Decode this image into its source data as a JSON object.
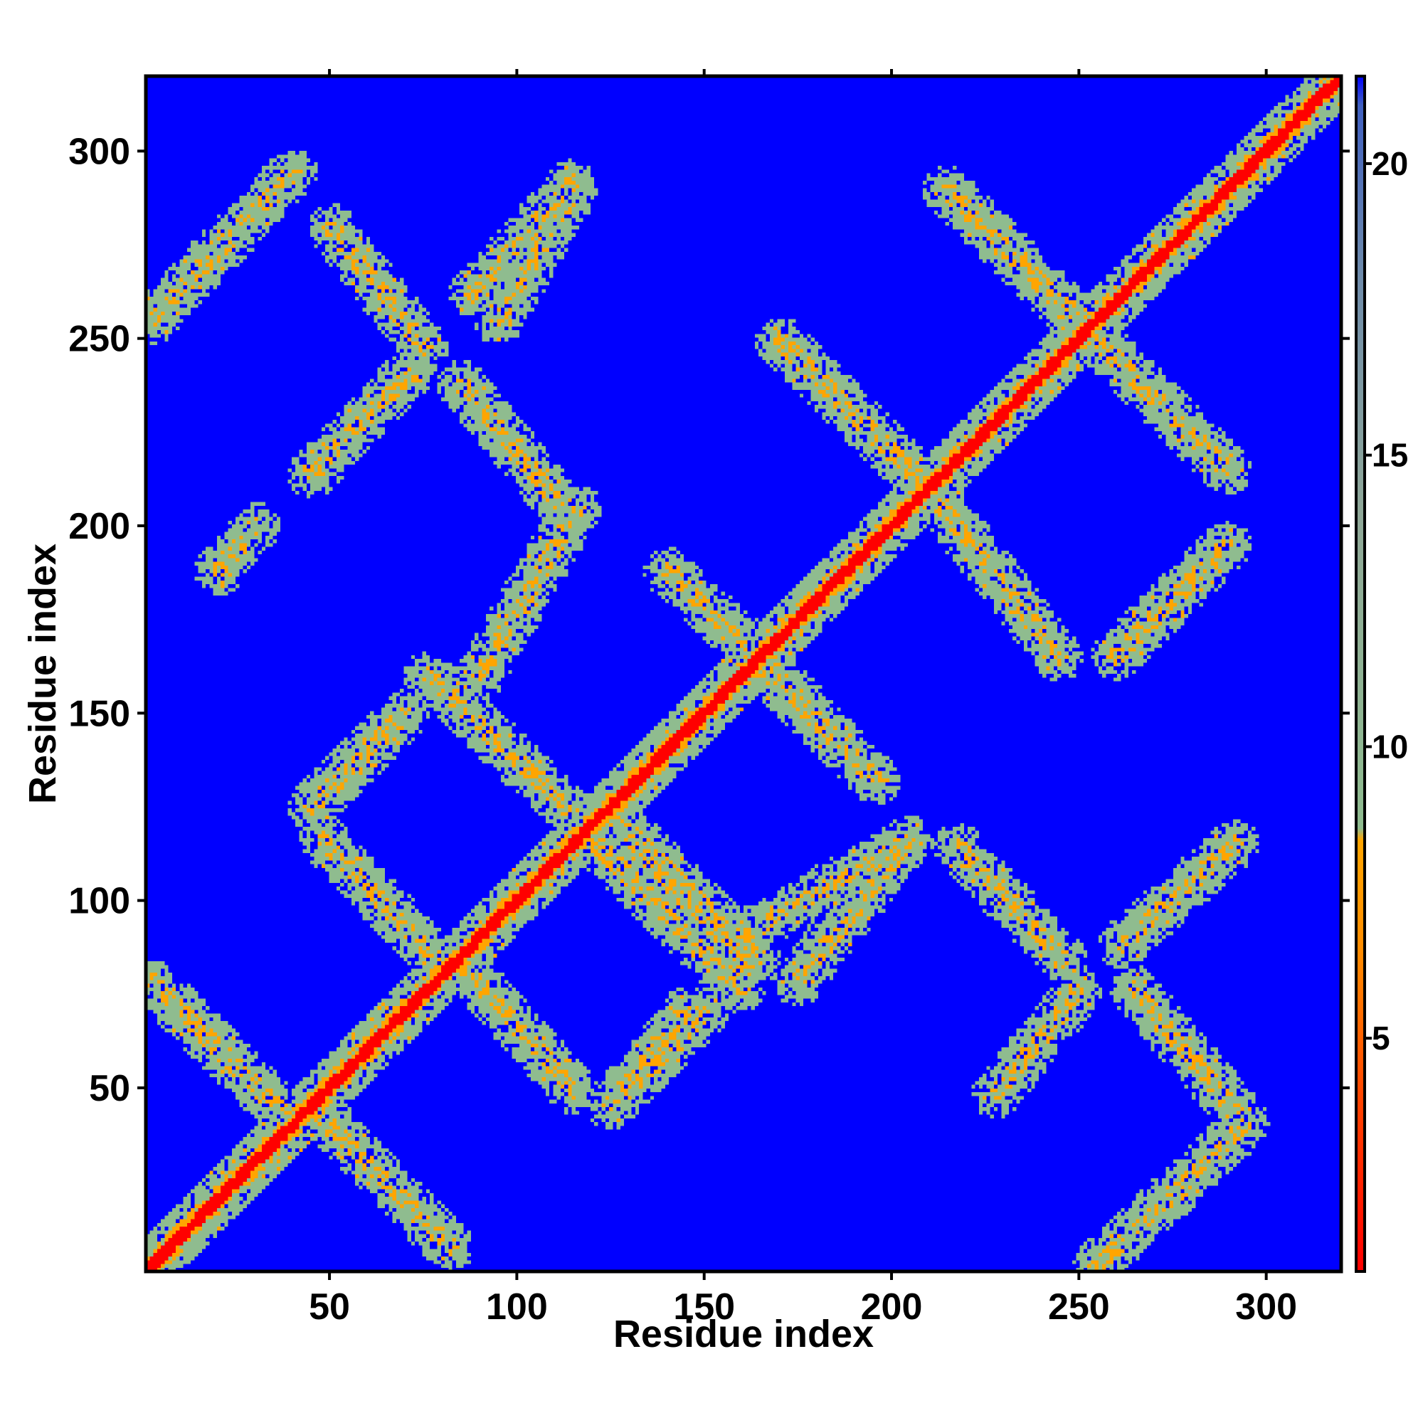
{
  "chart_data": {
    "type": "heatmap",
    "title": "",
    "xlabel": "Residue index",
    "ylabel": "Residue index",
    "xlim": [
      1,
      320
    ],
    "ylim": [
      1,
      320
    ],
    "x_ticks": [
      50,
      100,
      150,
      200,
      250,
      300
    ],
    "y_ticks": [
      50,
      100,
      150,
      200,
      250,
      300
    ],
    "grid": false,
    "colorbar": {
      "ticks": [
        5,
        10,
        15,
        20
      ],
      "range": [
        1,
        21.5
      ],
      "stops": [
        {
          "value": 1,
          "color": "#ff0000"
        },
        {
          "value": 4,
          "color": "#ff4500"
        },
        {
          "value": 6.5,
          "color": "#ff8c00"
        },
        {
          "value": 8.4,
          "color": "#ffa500"
        },
        {
          "value": 8.6,
          "color": "#8fbc8f"
        },
        {
          "value": 14,
          "color": "#8fa898"
        },
        {
          "value": 18,
          "color": "#6f8caa"
        },
        {
          "value": 21,
          "color": "#4060c0"
        },
        {
          "value": 21.5,
          "color": "#0000ff"
        }
      ]
    },
    "background_color": "#0000ff",
    "colors": {
      "far": "#0000ff",
      "contact_band": "#8fbc8f",
      "close_contact": "#ffa500",
      "diagonal": "#ff0000"
    },
    "contact_bands": [
      {
        "orientation": "parallel",
        "i": [
          1,
          320
        ],
        "j": [
          1,
          320
        ]
      },
      {
        "orientation": "antiparallel",
        "i": [
          2,
          40
        ],
        "j": [
          78,
          40
        ]
      },
      {
        "orientation": "antiparallel",
        "i": [
          45,
          82
        ],
        "j": [
          45,
          7
        ]
      },
      {
        "orientation": "antiparallel",
        "i": [
          48,
          82
        ],
        "j": [
          116,
          80
        ]
      },
      {
        "orientation": "antiparallel",
        "i": [
          84,
          115
        ],
        "j": [
          84,
          49
        ]
      },
      {
        "orientation": "antiparallel",
        "i": [
          76,
          120
        ],
        "j": [
          160,
          118
        ]
      },
      {
        "orientation": "antiparallel",
        "i": [
          118,
          160
        ],
        "j": [
          118,
          76
        ]
      },
      {
        "orientation": "antiparallel",
        "i": [
          122,
          162
        ],
        "j": [
          124,
          82
        ]
      },
      {
        "orientation": "antiparallel",
        "i": [
          126,
          164
        ],
        "j": [
          122,
          84
        ]
      },
      {
        "orientation": "antiparallel",
        "i": [
          140,
          170
        ],
        "j": [
          188,
          160
        ]
      },
      {
        "orientation": "antiparallel",
        "i": [
          160,
          188
        ],
        "j": [
          170,
          140
        ]
      },
      {
        "orientation": "antiparallel",
        "i": [
          166,
          196
        ],
        "j": [
          162,
          132
        ]
      },
      {
        "orientation": "antiparallel",
        "i": [
          210,
          245
        ],
        "j": [
          210,
          165
        ]
      },
      {
        "orientation": "antiparallel",
        "i": [
          170,
          210
        ],
        "j": [
          250,
          210
        ]
      },
      {
        "orientation": "antiparallel",
        "i": [
          215,
          255
        ],
        "j": [
          290,
          250
        ]
      },
      {
        "orientation": "antiparallel",
        "i": [
          250,
          290
        ],
        "j": [
          255,
          215
        ]
      },
      {
        "orientation": "antiparallel",
        "i": [
          218,
          246
        ],
        "j": [
          114,
          84
        ]
      },
      {
        "orientation": "antiparallel",
        "i": [
          265,
          292
        ],
        "j": [
          76,
          44
        ]
      },
      {
        "orientation": "antiparallel",
        "i": [
          50,
          75
        ],
        "j": [
          280,
          248
        ]
      },
      {
        "orientation": "antiparallel",
        "i": [
          85,
          112
        ],
        "j": [
          238,
          205
        ]
      },
      {
        "orientation": "parallel",
        "i": [
          2,
          40
        ],
        "j": [
          255,
          295
        ]
      },
      {
        "orientation": "parallel",
        "i": [
          255,
          295
        ],
        "j": [
          2,
          40
        ]
      },
      {
        "orientation": "parallel",
        "i": [
          45,
          70
        ],
        "j": [
          125,
          150
        ]
      },
      {
        "orientation": "parallel",
        "i": [
          125,
          150
        ],
        "j": [
          45,
          70
        ]
      },
      {
        "orientation": "parallel",
        "i": [
          90,
          116
        ],
        "j": [
          160,
          205
        ]
      },
      {
        "orientation": "parallel",
        "i": [
          160,
          205
        ],
        "j": [
          90,
          116
        ]
      },
      {
        "orientation": "parallel",
        "i": [
          125,
          145
        ],
        "j": [
          45,
          70
        ]
      },
      {
        "orientation": "parallel",
        "i": [
          175,
          205
        ],
        "j": [
          78,
          116
        ]
      },
      {
        "orientation": "parallel",
        "i": [
          262,
          292
        ],
        "j": [
          88,
          115
        ]
      },
      {
        "orientation": "parallel",
        "i": [
          88,
          115
        ],
        "j": [
          262,
          292
        ]
      },
      {
        "orientation": "parallel",
        "i": [
          45,
          72
        ],
        "j": [
          214,
          242
        ]
      },
      {
        "orientation": "parallel",
        "i": [
          95,
          115
        ],
        "j": [
          255,
          290
        ]
      },
      {
        "orientation": "parallel",
        "i": [
          228,
          250
        ],
        "j": [
          48,
          75
        ]
      },
      {
        "orientation": "parallel",
        "i": [
          260,
          290
        ],
        "j": [
          165,
          195
        ]
      },
      {
        "orientation": "parallel",
        "i": [
          20,
          30
        ],
        "j": [
          188,
          200
        ]
      }
    ]
  }
}
